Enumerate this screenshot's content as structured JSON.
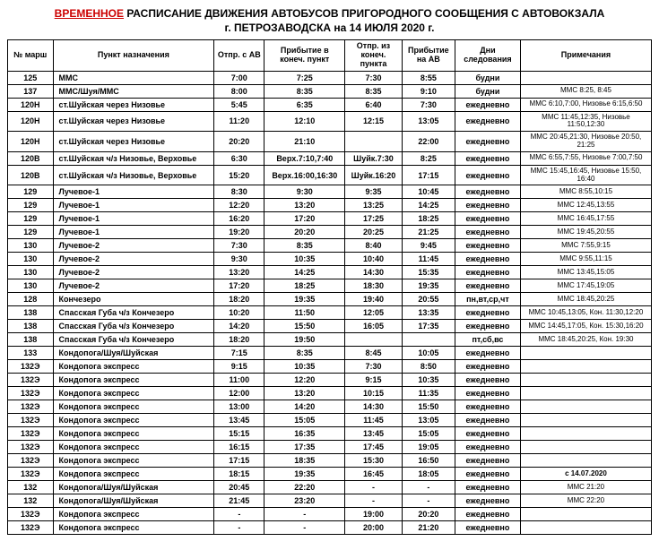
{
  "title_temp": "ВРЕМЕННОЕ",
  "title_rest": "РАСПИСАНИЕ ДВИЖЕНИЯ АВТОБУСОВ ПРИГОРОДНОГО СООБЩЕНИЯ С АВТОВОКЗАЛА",
  "subtitle": "г. ПЕТРОЗАВОДСКА  на 14 ИЮЛЯ 2020 г.",
  "headers": {
    "route": "№ марш",
    "dest": "Пункт назначения",
    "dep_av": "Отпр. с АВ",
    "arr_end": "Прибытие в конеч. пункт",
    "dep_end": "Отпр. из конеч. пункта",
    "arr_av": "Прибытие на АВ",
    "days": "Дни следования",
    "notes": "Примечания"
  },
  "rows": [
    {
      "r": "125",
      "d": "ММС",
      "t1": "7:00",
      "t2": "7:25",
      "t3": "7:30",
      "t4": "8:55",
      "days": "будни",
      "n": ""
    },
    {
      "r": "137",
      "d": "ММС/Шуя/ММС",
      "t1": "8:00",
      "t2": "8:35",
      "t3": "8:35",
      "t4": "9:10",
      "days": "будни",
      "n": "ММС 8:25, 8:45"
    },
    {
      "r": "120Н",
      "d": "ст.Шуйская через Низовье",
      "t1": "5:45",
      "t2": "6:35",
      "t3": "6:40",
      "t4": "7:30",
      "days": "ежедневно",
      "n": "ММС 6:10,7:00, Низовье 6:15,6:50"
    },
    {
      "r": "120Н",
      "d": "ст.Шуйская через Низовье",
      "t1": "11:20",
      "t2": "12:10",
      "t3": "12:15",
      "t4": "13:05",
      "days": "ежедневно",
      "n": "ММС 11:45,12:35, Низовье 11:50,12:30"
    },
    {
      "r": "120Н",
      "d": "ст.Шуйская через Низовье",
      "t1": "20:20",
      "t2": "21:10",
      "t3": "",
      "t4": "22:00",
      "days": "ежедневно",
      "n": "ММС 20:45,21:30, Низовье 20:50, 21:25"
    },
    {
      "r": "120В",
      "d": "ст.Шуйская ч/з Низовье, Верховье",
      "t1": "6:30",
      "t2": "Верх.7:10,7:40",
      "t3": "Шуйк.7:30",
      "t4": "8:25",
      "days": "ежедневно",
      "n": "ММС 6:55,7:55, Низовье 7:00,7:50"
    },
    {
      "r": "120В",
      "d": "ст.Шуйская ч/з Низовье, Верховье",
      "t1": "15:20",
      "t2": "Верх.16:00,16:30",
      "t3": "Шуйк.16:20",
      "t4": "17:15",
      "days": "ежедневно",
      "n": "ММС 15:45,16:45, Низовье 15:50, 16:40"
    },
    {
      "r": "129",
      "d": "Лучевое-1",
      "t1": "8:30",
      "t2": "9:30",
      "t3": "9:35",
      "t4": "10:45",
      "days": "ежедневно",
      "n": "ММС 8:55,10:15"
    },
    {
      "r": "129",
      "d": "Лучевое-1",
      "t1": "12:20",
      "t2": "13:20",
      "t3": "13:25",
      "t4": "14:25",
      "days": "ежедневно",
      "n": "ММС 12:45,13:55"
    },
    {
      "r": "129",
      "d": "Лучевое-1",
      "t1": "16:20",
      "t2": "17:20",
      "t3": "17:25",
      "t4": "18:25",
      "days": "ежедневно",
      "n": "ММС 16:45,17:55"
    },
    {
      "r": "129",
      "d": "Лучевое-1",
      "t1": "19:20",
      "t2": "20:20",
      "t3": "20:25",
      "t4": "21:25",
      "days": "ежедневно",
      "n": "ММС 19:45,20:55"
    },
    {
      "r": "130",
      "d": "Лучевое-2",
      "t1": "7:30",
      "t2": "8:35",
      "t3": "8:40",
      "t4": "9:45",
      "days": "ежедневно",
      "n": "ММС 7:55,9:15"
    },
    {
      "r": "130",
      "d": "Лучевое-2",
      "t1": "9:30",
      "t2": "10:35",
      "t3": "10:40",
      "t4": "11:45",
      "days": "ежедневно",
      "n": "ММС 9:55,11:15"
    },
    {
      "r": "130",
      "d": "Лучевое-2",
      "t1": "13:20",
      "t2": "14:25",
      "t3": "14:30",
      "t4": "15:35",
      "days": "ежедневно",
      "n": "ММС 13:45,15:05"
    },
    {
      "r": "130",
      "d": "Лучевое-2",
      "t1": "17:20",
      "t2": "18:25",
      "t3": "18:30",
      "t4": "19:35",
      "days": "ежедневно",
      "n": "ММС 17:45,19:05"
    },
    {
      "r": "128",
      "d": "Кончезеро",
      "t1": "18:20",
      "t2": "19:35",
      "t3": "19:40",
      "t4": "20:55",
      "days": "пн,вт,ср,чт",
      "n": "ММС 18:45,20:25"
    },
    {
      "r": "138",
      "d": "Спасская Губа ч/з Кончезеро",
      "t1": "10:20",
      "t2": "11:50",
      "t3": "12:05",
      "t4": "13:35",
      "days": "ежедневно",
      "n": "ММС 10:45,13:05, Кон. 11:30,12:20"
    },
    {
      "r": "138",
      "d": "Спасская Губа ч/з Кончезеро",
      "t1": "14:20",
      "t2": "15:50",
      "t3": "16:05",
      "t4": "17:35",
      "days": "ежедневно",
      "n": "ММС 14:45,17:05, Кон. 15:30,16:20"
    },
    {
      "r": "138",
      "d": "Спасская Губа ч/з Кончезеро",
      "t1": "18:20",
      "t2": "19:50",
      "t3": "",
      "t4": "",
      "days": "пт,сб,вс",
      "n": "ММС 18:45,20:25, Кон. 19:30"
    },
    {
      "r": "133",
      "d": "Кондопога/Шуя/Шуйская",
      "t1": "7:15",
      "t2": "8:35",
      "t3": "8:45",
      "t4": "10:05",
      "days": "ежедневно",
      "n": ""
    },
    {
      "r": "132Э",
      "d": "Кондопога экспресс",
      "t1": "9:15",
      "t2": "10:35",
      "t3": "7:30",
      "t4": "8:50",
      "days": "ежедневно",
      "n": ""
    },
    {
      "r": "132Э",
      "d": "Кондопога экспресс",
      "t1": "11:00",
      "t2": "12:20",
      "t3": "9:15",
      "t4": "10:35",
      "days": "ежедневно",
      "n": ""
    },
    {
      "r": "132Э",
      "d": "Кондопога экспресс",
      "t1": "12:00",
      "t2": "13:20",
      "t3": "10:15",
      "t4": "11:35",
      "days": "ежедневно",
      "n": ""
    },
    {
      "r": "132Э",
      "d": "Кондопога экспресс",
      "t1": "13:00",
      "t2": "14:20",
      "t3": "14:30",
      "t4": "15:50",
      "days": "ежедневно",
      "n": ""
    },
    {
      "r": "132Э",
      "d": "Кондопога экспресс",
      "t1": "13:45",
      "t2": "15:05",
      "t3": "11:45",
      "t4": "13:05",
      "days": "ежедневно",
      "n": ""
    },
    {
      "r": "132Э",
      "d": "Кондопога экспресс",
      "t1": "15:15",
      "t2": "16:35",
      "t3": "13:45",
      "t4": "15:05",
      "days": "ежедневно",
      "n": ""
    },
    {
      "r": "132Э",
      "d": "Кондопога экспресс",
      "t1": "16:15",
      "t2": "17:35",
      "t3": "17:45",
      "t4": "19:05",
      "days": "ежедневно",
      "n": ""
    },
    {
      "r": "132Э",
      "d": "Кондопога экспресс",
      "t1": "17:15",
      "t2": "18:35",
      "t3": "15:30",
      "t4": "16:50",
      "days": "ежедневно",
      "n": ""
    },
    {
      "r": "132Э",
      "d": "Кондопога экспресс",
      "t1": "18:15",
      "t2": "19:35",
      "t3": "16:45",
      "t4": "18:05",
      "days": "ежедневно",
      "n": "с 14.07.2020",
      "nbig": true
    },
    {
      "r": "132",
      "d": "Кондопога/Шуя/Шуйская",
      "t1": "20:45",
      "t2": "22:20",
      "t3": "-",
      "t4": "-",
      "days": "ежедневно",
      "n": "ММС 21:20"
    },
    {
      "r": "132",
      "d": "Кондопога/Шуя/Шуйская",
      "t1": "21:45",
      "t2": "23:20",
      "t3": "-",
      "t4": "-",
      "days": "ежедневно",
      "n": "ММС 22:20"
    },
    {
      "r": "132Э",
      "d": "Кондопога экспресс",
      "t1": "-",
      "t2": "-",
      "t3": "19:00",
      "t4": "20:20",
      "days": "ежедневно",
      "n": ""
    },
    {
      "r": "132Э",
      "d": "Кондопога экспресс",
      "t1": "-",
      "t2": "-",
      "t3": "20:00",
      "t4": "21:20",
      "days": "ежедневно",
      "n": ""
    }
  ]
}
